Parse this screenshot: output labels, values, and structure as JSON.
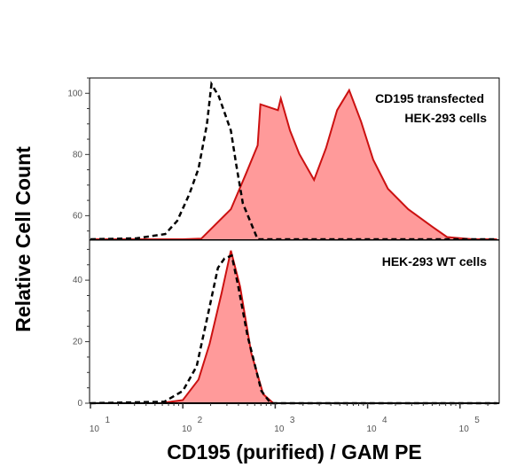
{
  "chart_data": [
    {
      "type": "area",
      "panel": "top",
      "annotation": [
        "CD195 transfected",
        "HEK-293 cells"
      ],
      "x_scale": "log",
      "xlim": [
        10,
        250000
      ],
      "ylim": [
        52,
        105
      ],
      "yticks": [
        60,
        80,
        100
      ],
      "grid": false,
      "series": [
        {
          "style": "filled",
          "color": "#cc1111",
          "fill": "#ff9a9a",
          "log10_x": [
            1.0,
            2.0,
            2.2,
            2.52,
            2.68,
            2.81,
            2.84,
            3.03,
            3.06,
            3.16,
            3.26,
            3.42,
            3.55,
            3.67,
            3.8,
            3.93,
            4.06,
            4.22,
            4.44,
            4.7,
            4.86,
            5.14,
            5.4
          ],
          "y": [
            52.3,
            52.3,
            52.5,
            62.1,
            73.5,
            83,
            96.4,
            94.5,
            98.3,
            87.8,
            80.2,
            71.7,
            82.1,
            94.5,
            101,
            90.7,
            78.3,
            68.8,
            62.1,
            56.4,
            53,
            52.3,
            52.3
          ]
        },
        {
          "style": "dashed",
          "color": "#000000",
          "log10_x": [
            1.0,
            1.5,
            1.81,
            1.94,
            2.07,
            2.17,
            2.26,
            2.31,
            2.39,
            2.52,
            2.58,
            2.65,
            2.81,
            5.4
          ],
          "y": [
            52.3,
            52.6,
            54,
            58.3,
            67,
            75.4,
            89.7,
            103,
            99,
            87.8,
            76.4,
            64,
            52.3,
            52.3
          ]
        }
      ]
    },
    {
      "type": "area",
      "panel": "bottom",
      "annotation": [
        "HEK-293 WT cells"
      ],
      "x_scale": "log",
      "xlim": [
        10,
        250000
      ],
      "ylim": [
        0,
        53
      ],
      "yticks": [
        0,
        20,
        40
      ],
      "xticks": [
        {
          "base": "10",
          "exp": "1"
        },
        {
          "base": "10",
          "exp": "2"
        },
        {
          "base": "10",
          "exp": "3"
        },
        {
          "base": "10",
          "exp": "4"
        },
        {
          "base": "10",
          "exp": "5"
        }
      ],
      "xlabel": "CD195 (purified) / GAM PE",
      "ylabel": "Relative Cell Count",
      "grid": false,
      "series": [
        {
          "style": "filled",
          "color": "#cc1111",
          "fill": "#ff9a9a",
          "log10_x": [
            1.0,
            1.75,
            2.0,
            2.17,
            2.29,
            2.42,
            2.52,
            2.62,
            2.74,
            2.87,
            2.98,
            5.4
          ],
          "y": [
            0,
            0,
            1,
            7.7,
            19.3,
            35.9,
            49.6,
            37.9,
            16.4,
            2.9,
            0,
            0
          ]
        },
        {
          "style": "dashed",
          "color": "#000000",
          "log10_x": [
            1.0,
            1.8,
            2.0,
            2.15,
            2.28,
            2.38,
            2.45,
            2.53,
            2.6,
            2.7,
            2.85,
            2.95,
            5.4
          ],
          "y": [
            0,
            0.5,
            4,
            12,
            30,
            44,
            47,
            48,
            38,
            22,
            4,
            0,
            0
          ]
        }
      ]
    }
  ]
}
